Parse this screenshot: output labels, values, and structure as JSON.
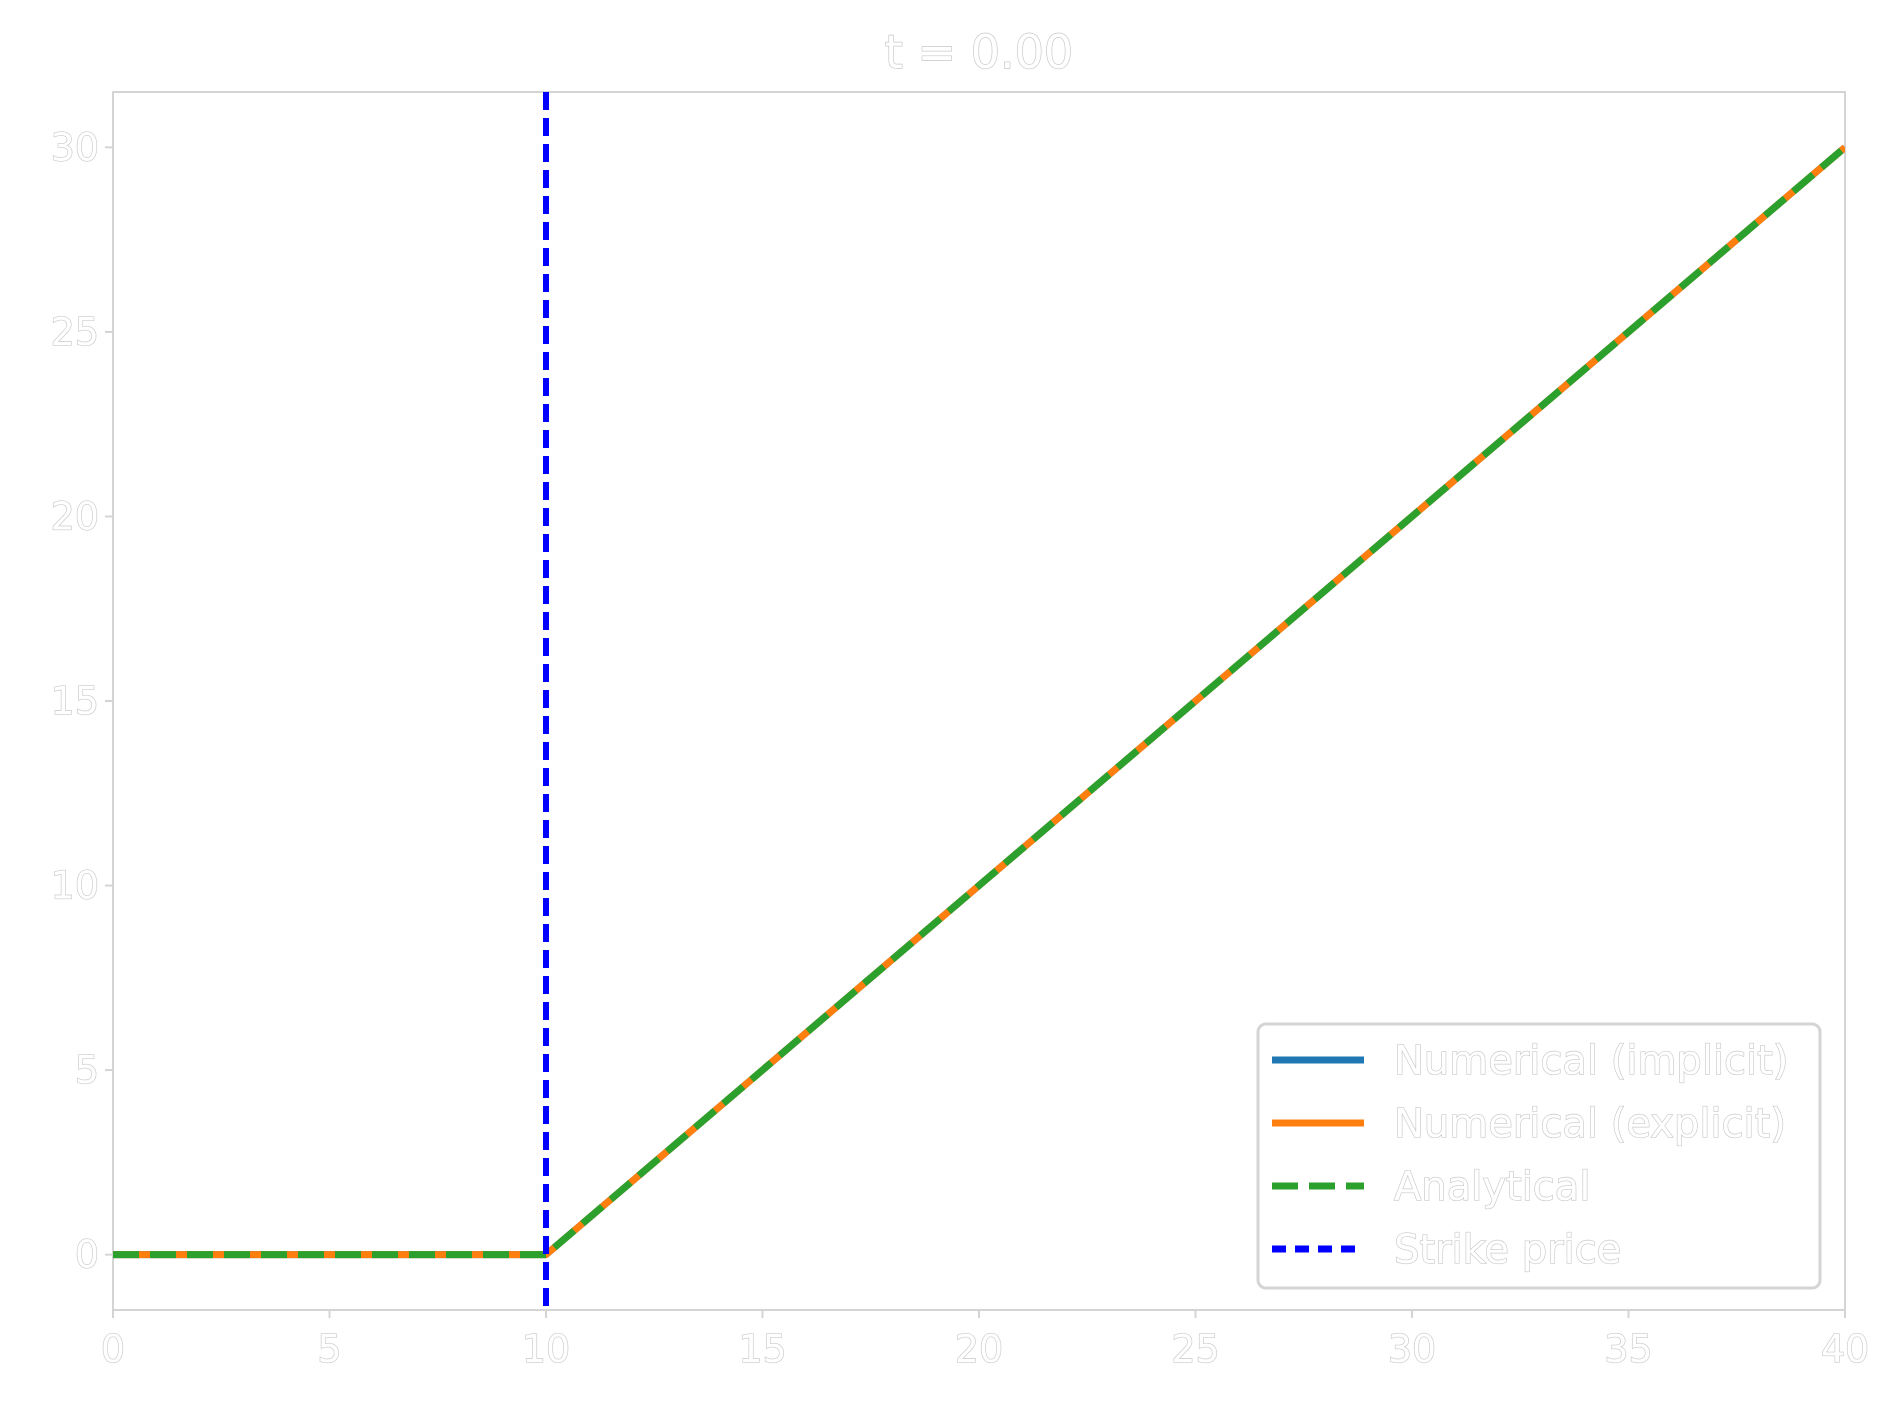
{
  "chart_data": {
    "type": "line",
    "title": "t = 0.00",
    "xlabel": "",
    "ylabel": "",
    "xlim": [
      0,
      40
    ],
    "ylim": [
      -1.5,
      31.5
    ],
    "xticks": [
      0,
      5,
      10,
      15,
      20,
      25,
      30,
      35,
      40
    ],
    "yticks": [
      0,
      5,
      10,
      15,
      20,
      25,
      30
    ],
    "grid": false,
    "legend_position": "lower right",
    "series": [
      {
        "name": "Numerical (implicit)",
        "color": "#1f77b4",
        "style": "solid",
        "x": [
          0,
          10,
          40
        ],
        "y": [
          0,
          0,
          30
        ]
      },
      {
        "name": "Numerical (explicit)",
        "color": "#ff7f0e",
        "style": "solid",
        "x": [
          0,
          10,
          40
        ],
        "y": [
          0,
          0,
          30
        ]
      },
      {
        "name": "Analytical",
        "color": "#2ca02c",
        "style": "dashed",
        "x": [
          0,
          10,
          40
        ],
        "y": [
          0,
          0,
          30
        ]
      }
    ],
    "vlines": [
      {
        "name": "Strike price",
        "x": 10,
        "color": "#0000ff",
        "style": "dashed"
      }
    ]
  }
}
